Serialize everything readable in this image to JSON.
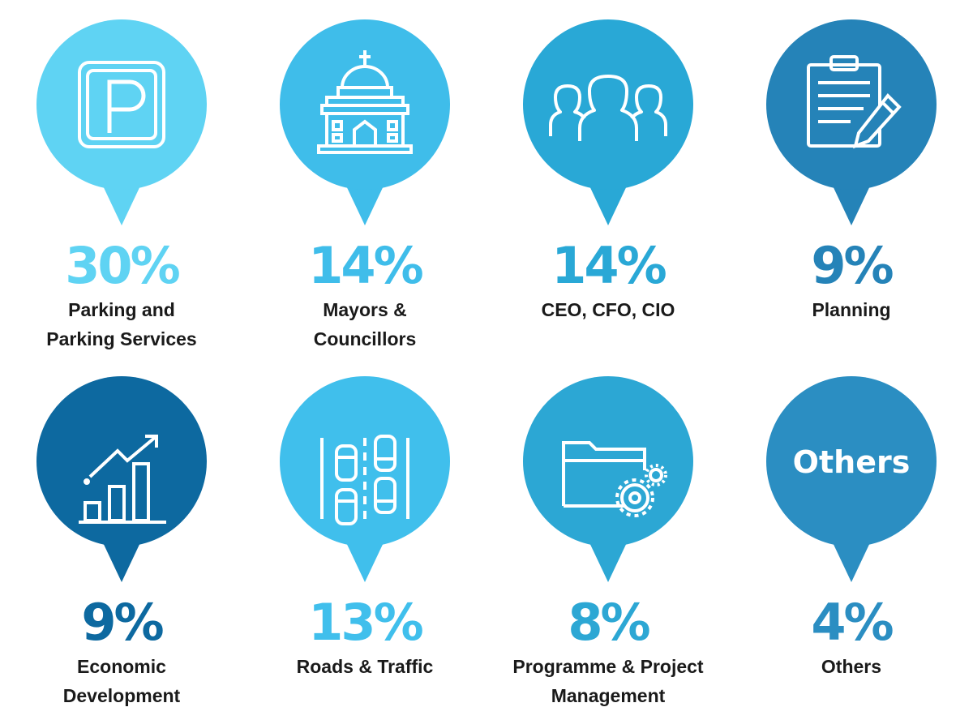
{
  "stats": [
    {
      "percent": "30%",
      "label": "Parking and\nParking Services",
      "icon": "parking-sign-icon",
      "color": "#5fd3f3"
    },
    {
      "percent": "14%",
      "label": "Mayors &\nCouncillors",
      "icon": "government-building-icon",
      "color": "#3fbdea"
    },
    {
      "percent": "14%",
      "label": "CEO, CFO, CIO",
      "icon": "executives-group-icon",
      "color": "#29a8d6"
    },
    {
      "percent": "9%",
      "label": "Planning",
      "icon": "clipboard-pencil-icon",
      "color": "#2583b8"
    },
    {
      "percent": "9%",
      "label": "Economic\nDevelopment",
      "icon": "growth-chart-icon",
      "color": "#0d69a0"
    },
    {
      "percent": "13%",
      "label": "Roads & Traffic",
      "icon": "road-traffic-icon",
      "color": "#40bfec"
    },
    {
      "percent": "8%",
      "label": "Programme & Project\nManagement",
      "icon": "folder-gear-icon",
      "color": "#2ca7d4"
    },
    {
      "percent": "4%",
      "label": "Others",
      "icon": "others-text",
      "icon_text": "Others",
      "color": "#2b8ec2"
    }
  ]
}
